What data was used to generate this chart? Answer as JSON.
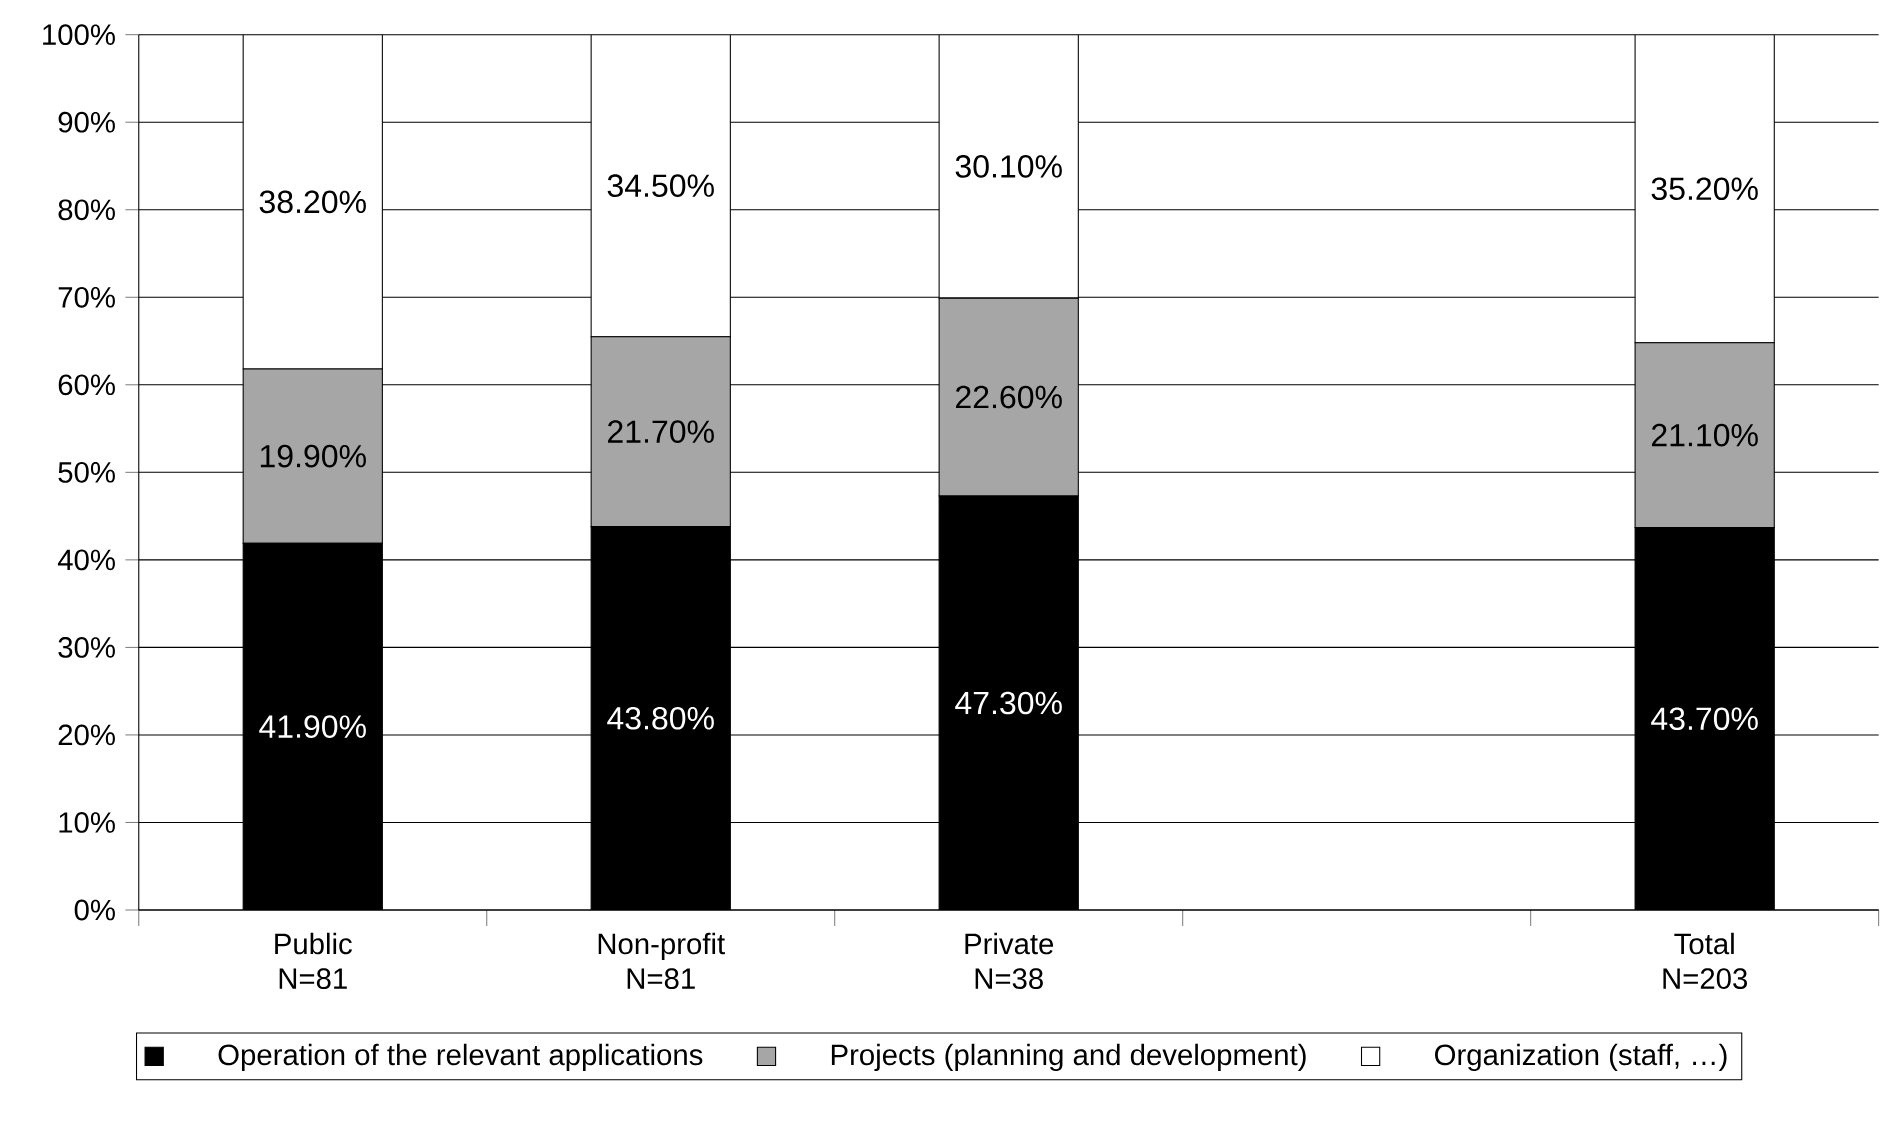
{
  "chart_data": {
    "type": "bar",
    "stacked": true,
    "categories": [
      "Public N=81",
      "Non-profit N=81",
      "Private N=38",
      null,
      "Total N=203"
    ],
    "series": [
      {
        "name": "Operation of the relevant applications",
        "color": "#000000",
        "values": [
          41.9,
          43.8,
          47.3,
          null,
          43.7
        ],
        "value_labels": [
          "41.90%",
          "43.80%",
          "47.30%",
          null,
          "43.70%"
        ]
      },
      {
        "name": "Projects (planning and development)",
        "color": "#a6a6a6",
        "values": [
          19.9,
          21.7,
          22.6,
          null,
          21.1
        ],
        "value_labels": [
          "19.90%",
          "21.70%",
          "22.60%",
          null,
          "21.10%"
        ]
      },
      {
        "name": "Organization (staff, …)",
        "color": "#ffffff",
        "values": [
          38.2,
          34.5,
          30.1,
          null,
          35.2
        ],
        "value_labels": [
          "38.20%",
          "34.50%",
          "30.10%",
          null,
          "35.20%"
        ]
      }
    ],
    "ylim": [
      0,
      100
    ],
    "yticks": [
      {
        "value": 0,
        "label": "0%"
      },
      {
        "value": 10,
        "label": "10%"
      },
      {
        "value": 20,
        "label": "20%"
      },
      {
        "value": 30,
        "label": "30%"
      },
      {
        "value": 40,
        "label": "40%"
      },
      {
        "value": 50,
        "label": "50%"
      },
      {
        "value": 60,
        "label": "60%"
      },
      {
        "value": 70,
        "label": "70%"
      },
      {
        "value": 80,
        "label": "80%"
      },
      {
        "value": 90,
        "label": "90%"
      },
      {
        "value": 100,
        "label": "100%"
      }
    ],
    "grid": "y",
    "legend": "bottom"
  }
}
